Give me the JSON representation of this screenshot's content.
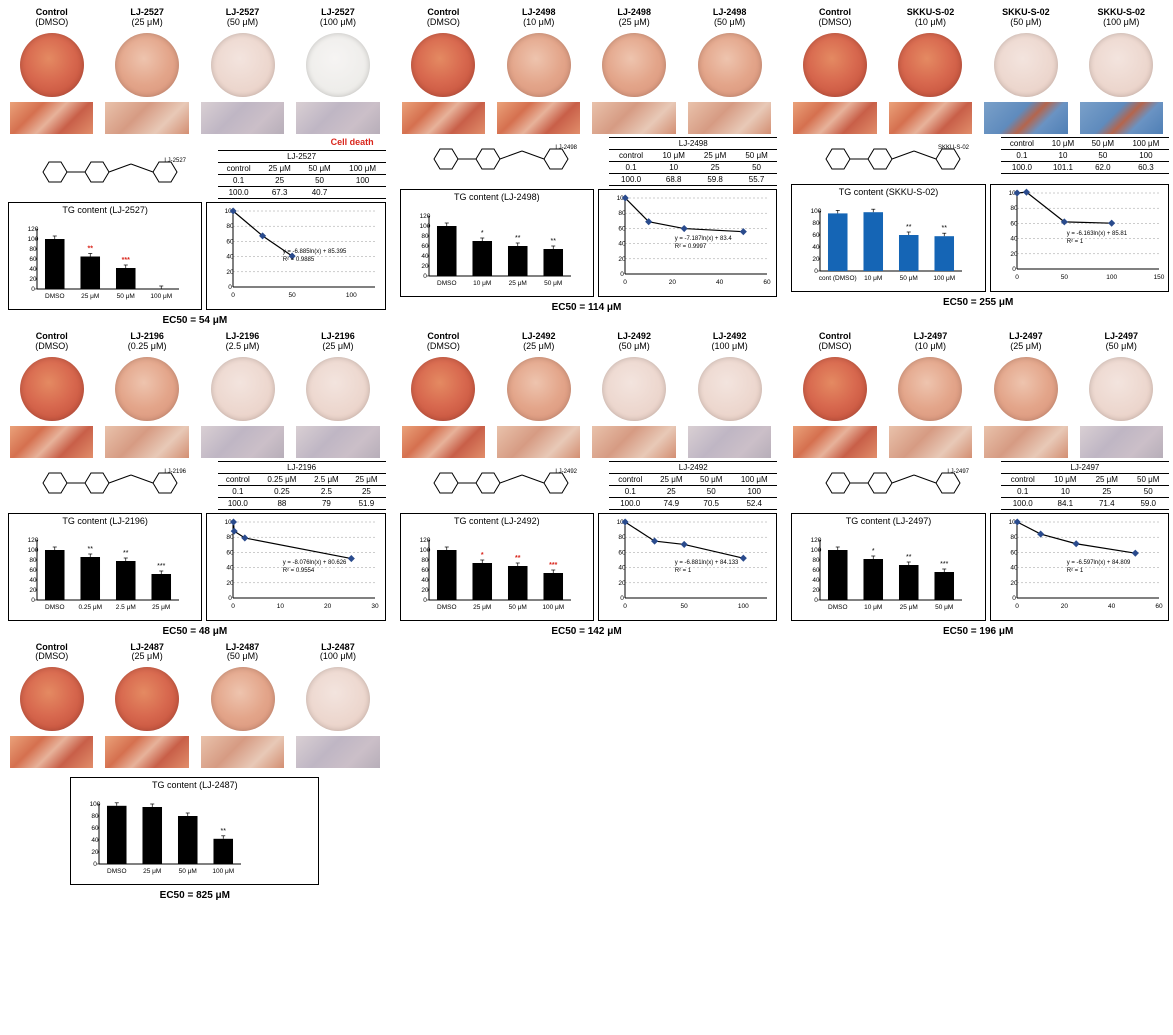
{
  "colors": {
    "well_high": "radial-gradient(circle at 45% 40%, #e48a62 0%, #d8694f 45%, #cc5a43 70%, #b9574a 100%)",
    "well_med": "radial-gradient(circle at 45% 40%, #eec4ae 0%, #e3a58a 50%, #d79077 100%)",
    "well_low": "radial-gradient(circle at 45% 40%, #f3e4de 0%, #ecd6cd 60%, #e4c8bd 100%)",
    "well_blank": "radial-gradient(circle at 45% 40%, #f6f4f3 0%, #edece9 70%, #e2e0dc 100%)",
    "micro_high": "linear-gradient(135deg,#eaa27a 0%,#d5704f 30%,#e7b29a 50%,#c85f48 70%,#e18e6b 100%)",
    "micro_med": "linear-gradient(135deg,#e9c2ab 0%,#d69b83 40%,#e8c9b7 70%,#d38e72 100%)",
    "micro_low": "linear-gradient(135deg,#d9cfd3 0%,#bfb6c4 40%,#cbbfc8 70%,#b7aeb9 100%)",
    "micro_blue": "linear-gradient(135deg,#7aa0c9 0%,#5f8bbd 40%,#b4654d 55%,#6a93c3 70%,#4f7fb5 100%)",
    "bar_black": "#000000",
    "bar_blue": "#1565b5",
    "grid": "#7f7f7f"
  },
  "panels": [
    {
      "id": "LJ-2527",
      "labels": [
        {
          "l1": "Control",
          "l2": "(DMSO)"
        },
        {
          "l1": "LJ-2527",
          "l2": "(25 μM)"
        },
        {
          "l1": "LJ-2527",
          "l2": "(50 μM)"
        },
        {
          "l1": "LJ-2527",
          "l2": "(100 μM)"
        }
      ],
      "well_intensity": [
        "high",
        "med",
        "low",
        "blank"
      ],
      "micro_intensity": [
        "micro_high",
        "micro_med",
        "micro_low",
        "micro_low"
      ],
      "note": "Cell death",
      "table": {
        "name": "LJ-2527",
        "head": [
          "control",
          "25 μM",
          "50 μM",
          "100 μM"
        ],
        "conc": [
          "0.1",
          "25",
          "50",
          "100"
        ],
        "val": [
          "100.0",
          "67.3",
          "40.7",
          ""
        ]
      },
      "tg": {
        "title": "TG content (LJ-2527)",
        "xlabels": [
          "DMSO",
          "25 μM",
          "50 μM",
          "100 μM"
        ],
        "values": [
          100,
          65,
          42,
          0
        ],
        "ymax": 120,
        "ytick": 20,
        "sig": [
          "",
          "**",
          "***",
          ""
        ],
        "sig_color": "red",
        "bar_color": "#000000"
      },
      "curve": {
        "ylim": [
          0,
          100
        ],
        "ytick": 20,
        "xlim": [
          0,
          120
        ],
        "points": [
          [
            0.1,
            100
          ],
          [
            25,
            67.3
          ],
          [
            50,
            40.7
          ]
        ],
        "eq": "y = -6.885ln(x) + 85.395   R² = 0.9885"
      },
      "ec50": "EC50 = 54 μM"
    },
    {
      "id": "LJ-2498",
      "labels": [
        {
          "l1": "Control",
          "l2": "(DMSO)"
        },
        {
          "l1": "LJ-2498",
          "l2": "(10 μM)"
        },
        {
          "l1": "LJ-2498",
          "l2": "(25 μM)"
        },
        {
          "l1": "LJ-2498",
          "l2": "(50 μM)"
        }
      ],
      "well_intensity": [
        "high",
        "med",
        "med",
        "med"
      ],
      "micro_intensity": [
        "micro_high",
        "micro_high",
        "micro_med",
        "micro_med"
      ],
      "table": {
        "name": "LJ-2498",
        "head": [
          "control",
          "10 μM",
          "25 μM",
          "50 μM"
        ],
        "conc": [
          "0.1",
          "10",
          "25",
          "50"
        ],
        "val": [
          "100.0",
          "68.8",
          "59.8",
          "55.7"
        ]
      },
      "tg": {
        "title": "TG content (LJ-2498)",
        "xlabels": [
          "DMSO",
          "10 μM",
          "25 μM",
          "50 μM"
        ],
        "values": [
          100,
          70,
          60,
          54
        ],
        "ymax": 120,
        "ytick": 20,
        "sig": [
          "",
          "*",
          "**",
          "**"
        ],
        "sig_color": "black",
        "bar_color": "#000000"
      },
      "curve": {
        "ylim": [
          0,
          100
        ],
        "ytick": 20,
        "xlim": [
          0,
          60
        ],
        "points": [
          [
            0.1,
            100
          ],
          [
            10,
            68.8
          ],
          [
            25,
            59.8
          ],
          [
            50,
            55.7
          ]
        ],
        "eq": "y = -7.187ln(x) + 83.4   R² = 0.9997"
      },
      "ec50": "EC50 = 114 μM"
    },
    {
      "id": "SKKU-S-02",
      "labels": [
        {
          "l1": "Control",
          "l2": "(DMSO)"
        },
        {
          "l1": "SKKU-S-02",
          "l2": "(10 μM)"
        },
        {
          "l1": "SKKU-S-02",
          "l2": "(50 μM)"
        },
        {
          "l1": "SKKU-S-02",
          "l2": "(100 μM)"
        }
      ],
      "well_intensity": [
        "high",
        "high",
        "low",
        "low"
      ],
      "micro_intensity": [
        "micro_high",
        "micro_high",
        "micro_blue",
        "micro_blue"
      ],
      "table": {
        "name": "",
        "head": [
          "control",
          "10 μM",
          "50 μM",
          "100 μM"
        ],
        "conc": [
          "0.1",
          "10",
          "50",
          "100"
        ],
        "val": [
          "100.0",
          "101.1",
          "62.0",
          "60.3"
        ]
      },
      "tg": {
        "title": "TG content (SKKU-S-02)",
        "xlabels": [
          "cont (DMSO)",
          "10 μM",
          "50 μM",
          "100 μM"
        ],
        "values": [
          96,
          98,
          60,
          58
        ],
        "ymax": 100,
        "ytick": 20,
        "sig": [
          "",
          "",
          "**",
          "**"
        ],
        "sig_color": "black",
        "bar_color": "#1565b5"
      },
      "curve": {
        "ylim": [
          0,
          100
        ],
        "ytick": 20,
        "xlim": [
          0,
          150
        ],
        "points": [
          [
            0.1,
            100
          ],
          [
            10,
            101.1
          ],
          [
            50,
            62
          ],
          [
            100,
            60.3
          ]
        ],
        "eq": "y = -6.163ln(x) + 85.81   R² = 1"
      },
      "ec50": "EC50 = 255 μM"
    },
    {
      "id": "LJ-2196",
      "labels": [
        {
          "l1": "Control",
          "l2": "(DMSO)"
        },
        {
          "l1": "LJ-2196",
          "l2": "(0.25 μM)"
        },
        {
          "l1": "LJ-2196",
          "l2": "(2.5 μM)"
        },
        {
          "l1": "LJ-2196",
          "l2": "(25 μM)"
        }
      ],
      "well_intensity": [
        "high",
        "med",
        "low",
        "low"
      ],
      "micro_intensity": [
        "micro_high",
        "micro_med",
        "micro_low",
        "micro_low"
      ],
      "table": {
        "name": "LJ-2196",
        "head": [
          "control",
          "0.25 μM",
          "2.5 μM",
          "25 μM"
        ],
        "conc": [
          "0.1",
          "0.25",
          "2.5",
          "25"
        ],
        "val": [
          "100.0",
          "88",
          "79",
          "51.9"
        ]
      },
      "tg": {
        "title": "TG content (LJ-2196)",
        "xlabels": [
          "DMSO",
          "0.25 μM",
          "2.5 μM",
          "25 μM"
        ],
        "values": [
          100,
          86,
          78,
          52
        ],
        "ymax": 120,
        "ytick": 20,
        "sig": [
          "",
          "**",
          "**",
          "***"
        ],
        "sig_color": "black",
        "bar_color": "#000000"
      },
      "curve": {
        "ylim": [
          0,
          100
        ],
        "ytick": 20,
        "xlim": [
          0,
          30
        ],
        "points": [
          [
            0.1,
            100
          ],
          [
            0.25,
            88
          ],
          [
            2.5,
            79
          ],
          [
            25,
            51.9
          ]
        ],
        "eq": "y = -8.076ln(x) + 80.626   R² = 0.9554"
      },
      "ec50": "EC50 = 48 μM"
    },
    {
      "id": "LJ-2492",
      "labels": [
        {
          "l1": "Control",
          "l2": "(DMSO)"
        },
        {
          "l1": "LJ-2492",
          "l2": "(25 μM)"
        },
        {
          "l1": "LJ-2492",
          "l2": "(50 μM)"
        },
        {
          "l1": "LJ-2492",
          "l2": "(100 μM)"
        }
      ],
      "well_intensity": [
        "high",
        "med",
        "low",
        "low"
      ],
      "micro_intensity": [
        "micro_high",
        "micro_med",
        "micro_med",
        "micro_low"
      ],
      "table": {
        "name": "LJ-2492",
        "head": [
          "control",
          "25 μM",
          "50 μM",
          "100 μM"
        ],
        "conc": [
          "0.1",
          "25",
          "50",
          "100"
        ],
        "val": [
          "100.0",
          "74.9",
          "70.5",
          "52.4"
        ]
      },
      "tg": {
        "title": "TG content (LJ-2492)",
        "xlabels": [
          "DMSO",
          "25 μM",
          "50 μM",
          "100 μM"
        ],
        "values": [
          100,
          74,
          68,
          54
        ],
        "ymax": 120,
        "ytick": 20,
        "sig": [
          "",
          "*",
          "**",
          "***"
        ],
        "sig_color": "red",
        "bar_color": "#000000"
      },
      "curve": {
        "ylim": [
          0,
          100
        ],
        "ytick": 20,
        "xlim": [
          0,
          120
        ],
        "points": [
          [
            0.1,
            100
          ],
          [
            25,
            74.9
          ],
          [
            50,
            70.5
          ],
          [
            100,
            52.4
          ]
        ],
        "eq": "y = -6.881ln(x) + 84.133   R² = 1"
      },
      "ec50": "EC50 = 142 μM"
    },
    {
      "id": "LJ-2497",
      "labels": [
        {
          "l1": "Control",
          "l2": "(DMSO)"
        },
        {
          "l1": "LJ-2497",
          "l2": "(10 μM)"
        },
        {
          "l1": "LJ-2497",
          "l2": "(25 μM)"
        },
        {
          "l1": "LJ-2497",
          "l2": "(50 μM)"
        }
      ],
      "well_intensity": [
        "high",
        "med",
        "med",
        "low"
      ],
      "micro_intensity": [
        "micro_high",
        "micro_med",
        "micro_med",
        "micro_low"
      ],
      "table": {
        "name": "LJ-2497",
        "head": [
          "control",
          "10 μM",
          "25 μM",
          "50 μM"
        ],
        "conc": [
          "0.1",
          "10",
          "25",
          "50"
        ],
        "val": [
          "100.0",
          "84.1",
          "71.4",
          "59.0"
        ]
      },
      "tg": {
        "title": "TG content (LJ-2497)",
        "xlabels": [
          "DMSO",
          "10 μM",
          "25 μM",
          "50 μM"
        ],
        "values": [
          100,
          82,
          70,
          56
        ],
        "ymax": 120,
        "ytick": 20,
        "sig": [
          "",
          "*",
          "**",
          "***"
        ],
        "sig_color": "black",
        "bar_color": "#000000"
      },
      "curve": {
        "ylim": [
          0,
          100
        ],
        "ytick": 20,
        "xlim": [
          0,
          60
        ],
        "points": [
          [
            0.1,
            100
          ],
          [
            10,
            84.1
          ],
          [
            25,
            71.4
          ],
          [
            50,
            59
          ]
        ],
        "eq": "y = -6.597ln(x) + 84.809   R² = 1"
      },
      "ec50": "EC50 = 196 μM"
    },
    {
      "id": "LJ-2487",
      "labels": [
        {
          "l1": "Control",
          "l2": "(DMSO)"
        },
        {
          "l1": "LJ-2487",
          "l2": "(25 μM)"
        },
        {
          "l1": "LJ-2487",
          "l2": "(50 μM)"
        },
        {
          "l1": "LJ-2487",
          "l2": "(100 μM)"
        }
      ],
      "well_intensity": [
        "high",
        "high",
        "med",
        "low"
      ],
      "micro_intensity": [
        "micro_high",
        "micro_high",
        "micro_med",
        "micro_low"
      ],
      "tg": {
        "title": "TG content (LJ-2487)",
        "xlabels": [
          "DMSO",
          "25 μM",
          "50 μM",
          "100 μM"
        ],
        "values": [
          97,
          95,
          80,
          42
        ],
        "ymax": 100,
        "ytick": 20,
        "sig": [
          "",
          "",
          "",
          "**"
        ],
        "sig_color": "black",
        "bar_color": "#000000"
      },
      "ec50": "EC50 = 825 μM",
      "fullwidth_tg": true,
      "no_table": true,
      "no_curve": true
    }
  ]
}
